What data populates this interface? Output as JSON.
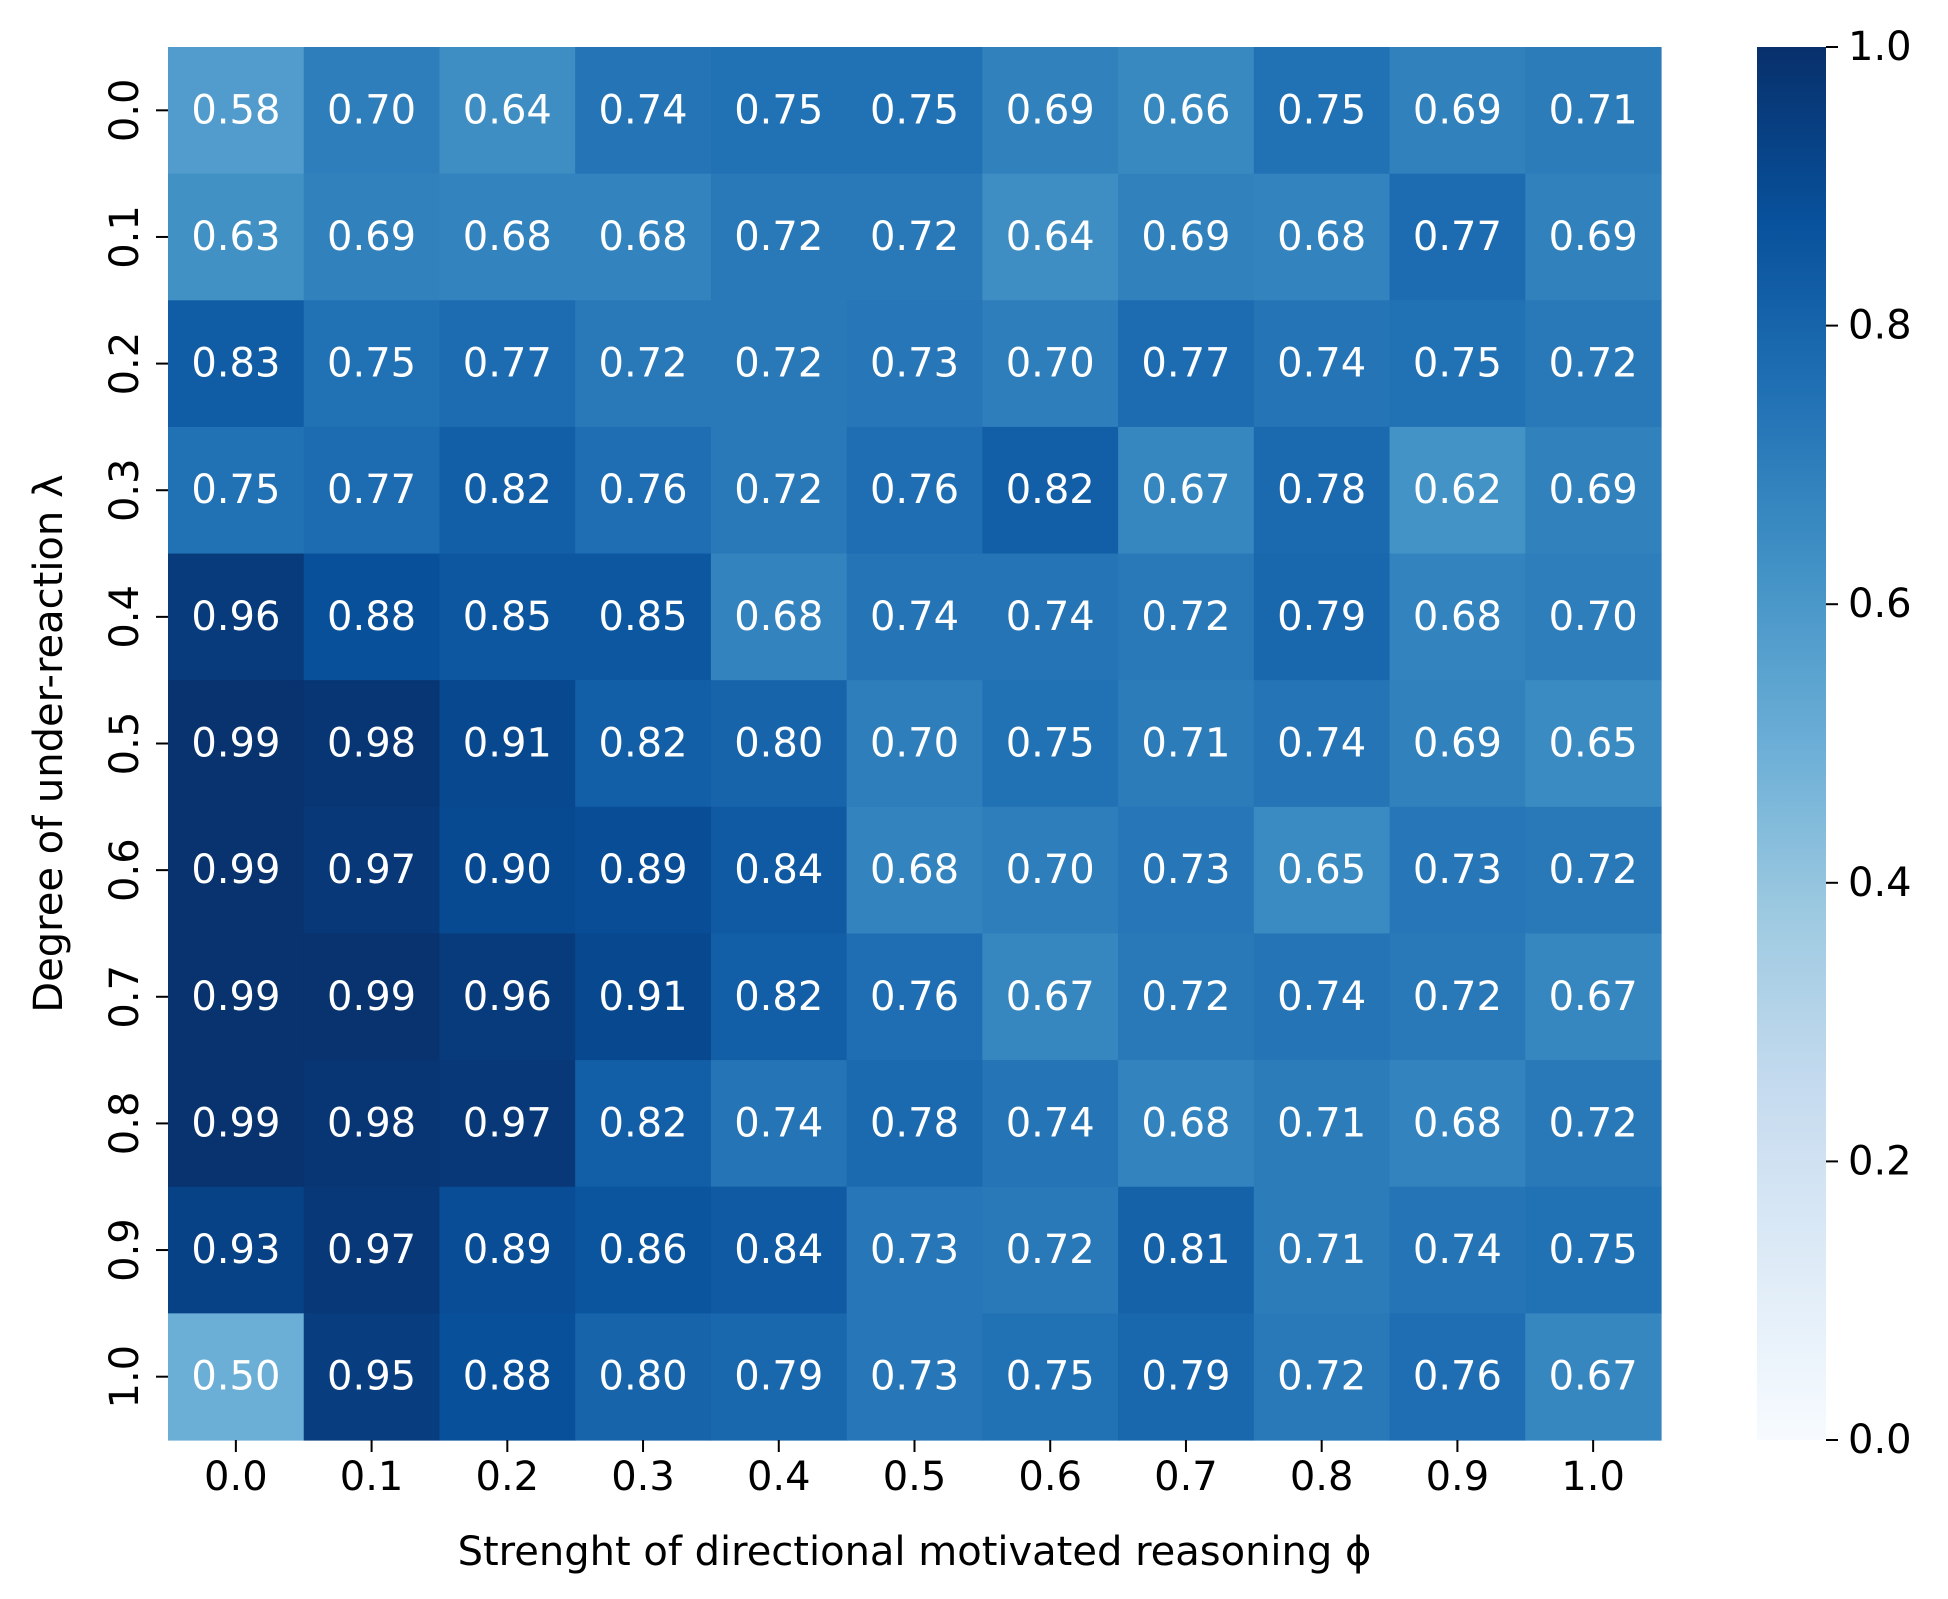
{
  "chart_data": {
    "type": "heatmap",
    "title": "",
    "xlabel": "Strenght of directional motivated reasoning ϕ",
    "ylabel": "Degree of under-reaction λ",
    "x_categories": [
      "0.0",
      "0.1",
      "0.2",
      "0.3",
      "0.4",
      "0.5",
      "0.6",
      "0.7",
      "0.8",
      "0.9",
      "1.0"
    ],
    "y_categories": [
      "0.0",
      "0.1",
      "0.2",
      "0.3",
      "0.4",
      "0.5",
      "0.6",
      "0.7",
      "0.8",
      "0.9",
      "1.0"
    ],
    "values": [
      [
        0.58,
        0.7,
        0.64,
        0.74,
        0.75,
        0.75,
        0.69,
        0.66,
        0.75,
        0.69,
        0.71
      ],
      [
        0.63,
        0.69,
        0.68,
        0.68,
        0.72,
        0.72,
        0.64,
        0.69,
        0.68,
        0.77,
        0.69
      ],
      [
        0.83,
        0.75,
        0.77,
        0.72,
        0.72,
        0.73,
        0.7,
        0.77,
        0.74,
        0.75,
        0.72
      ],
      [
        0.75,
        0.77,
        0.82,
        0.76,
        0.72,
        0.76,
        0.82,
        0.67,
        0.78,
        0.62,
        0.69
      ],
      [
        0.96,
        0.88,
        0.85,
        0.85,
        0.68,
        0.74,
        0.74,
        0.72,
        0.79,
        0.68,
        0.7
      ],
      [
        0.99,
        0.98,
        0.91,
        0.82,
        0.8,
        0.7,
        0.75,
        0.71,
        0.74,
        0.69,
        0.65
      ],
      [
        0.99,
        0.97,
        0.9,
        0.89,
        0.84,
        0.68,
        0.7,
        0.73,
        0.65,
        0.73,
        0.72
      ],
      [
        0.99,
        0.99,
        0.96,
        0.91,
        0.82,
        0.76,
        0.67,
        0.72,
        0.74,
        0.72,
        0.67
      ],
      [
        0.99,
        0.98,
        0.97,
        0.82,
        0.74,
        0.78,
        0.74,
        0.68,
        0.71,
        0.68,
        0.72
      ],
      [
        0.93,
        0.97,
        0.89,
        0.86,
        0.84,
        0.73,
        0.72,
        0.81,
        0.71,
        0.74,
        0.75
      ],
      [
        0.5,
        0.95,
        0.88,
        0.8,
        0.79,
        0.73,
        0.75,
        0.79,
        0.72,
        0.76,
        0.67
      ]
    ],
    "colorbar": {
      "colormap": "Blues",
      "range": [
        0.0,
        1.0
      ],
      "ticks": [
        "0.0",
        "0.2",
        "0.4",
        "0.6",
        "0.8",
        "1.0"
      ]
    },
    "colormap_stops": [
      "#f7fbff",
      "#deebf7",
      "#c6dbef",
      "#9ecae1",
      "#6baed6",
      "#4292c6",
      "#2171b5",
      "#08519c",
      "#08306b"
    ],
    "cell_text_color": "#ffffff",
    "grid": false,
    "legend": "colorbar-right"
  }
}
